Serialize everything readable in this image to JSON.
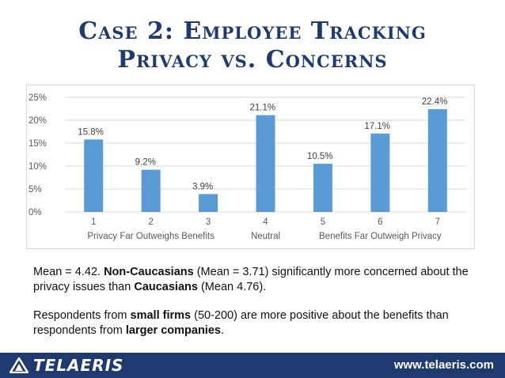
{
  "slide": {
    "title_line1": "Case 2: Employee Tracking",
    "title_line2": "Privacy vs. Concerns"
  },
  "chart_data": {
    "type": "bar",
    "categories": [
      "1",
      "2",
      "3",
      "4",
      "5",
      "6",
      "7"
    ],
    "values": [
      15.8,
      9.2,
      3.9,
      21.1,
      10.5,
      17.1,
      22.4
    ],
    "data_labels": [
      "15.8%",
      "9.2%",
      "3.9%",
      "21.1%",
      "10.5%",
      "17.1%",
      "22.4%"
    ],
    "y_ticks": [
      0,
      5,
      10,
      15,
      20,
      25
    ],
    "y_tick_labels": [
      "0%",
      "5%",
      "10%",
      "15%",
      "20%",
      "25%"
    ],
    "ylim": [
      0,
      25
    ],
    "grid": true,
    "bar_color": "#5b9bd5",
    "x_annotations": [
      {
        "text": "Privacy Far Outweighs Benefits",
        "at_category": "2"
      },
      {
        "text": "Neutral",
        "at_category": "4"
      },
      {
        "text": "Benefits Far Outweigh Privacy",
        "at_category": "6"
      }
    ]
  },
  "text": {
    "p1_a": "Mean = 4.42.  ",
    "p1_b": "Non-Caucasians",
    "p1_c": " (Mean = 3.71) significantly more concerned about the privacy issues than ",
    "p1_d": "Caucasians",
    "p1_e": " (Mean 4.76).",
    "p2_a": "Respondents from ",
    "p2_b": "small firms",
    "p2_c": " (50-200) are more positive about the benefits than respondents from ",
    "p2_d": "larger companies",
    "p2_e": "."
  },
  "footer": {
    "logo_text": "TELAERIS",
    "logo_icon": "telaeris-triangle-icon",
    "url": "www.telaeris.com",
    "background": "#1f3a6e"
  }
}
